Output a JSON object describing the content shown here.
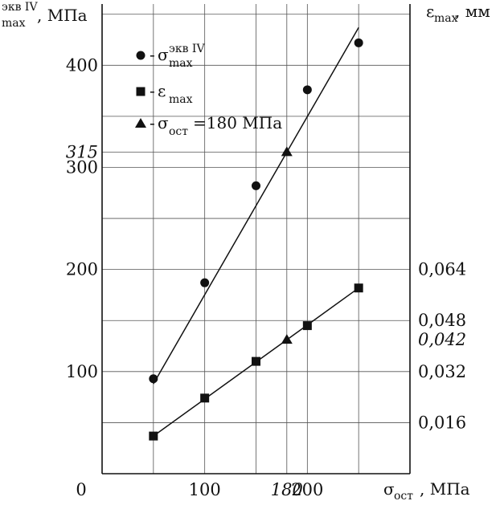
{
  "chart_data": {
    "type": "scatter",
    "x_axis": {
      "title_symbol": "σ",
      "title_subscript": "ост",
      "title_unit": ", МПа",
      "range": [
        0,
        300
      ],
      "ticks": [
        {
          "value": 0,
          "label": "0",
          "italic": false
        },
        {
          "value": 100,
          "label": "100",
          "italic": false
        },
        {
          "value": 180,
          "label": "180",
          "italic": true
        },
        {
          "value": 200,
          "label": "200",
          "italic": false
        }
      ],
      "gridlines": [
        0,
        50,
        100,
        150,
        180,
        200,
        250
      ]
    },
    "y_left_axis": {
      "title_superscript": "экв IV",
      "title_subscript": "max",
      "title_unit": ", МПа",
      "range": [
        0,
        460
      ],
      "ticks": [
        {
          "value": 100,
          "label": "100",
          "italic": false
        },
        {
          "value": 200,
          "label": "200",
          "italic": false
        },
        {
          "value": 300,
          "label": "300",
          "italic": false
        },
        {
          "value": 315,
          "label": "315",
          "italic": true
        },
        {
          "value": 400,
          "label": "400",
          "italic": false
        }
      ],
      "gridlines": [
        50,
        100,
        150,
        200,
        250,
        300,
        315,
        350,
        400,
        450
      ]
    },
    "y_right_axis": {
      "title_symbol": "ε",
      "title_subscript": "max",
      "title_unit": ", мм",
      "range": [
        0,
        0.1472
      ],
      "ticks": [
        {
          "value": 0.016,
          "label": "0,016",
          "italic": false
        },
        {
          "value": 0.032,
          "label": "0,032",
          "italic": false
        },
        {
          "value": 0.042,
          "label": "0,042",
          "italic": true
        },
        {
          "value": 0.048,
          "label": "0,048",
          "italic": false
        },
        {
          "value": 0.064,
          "label": "0,064",
          "italic": false
        }
      ]
    },
    "grid": true,
    "legend": {
      "placement": "top-left",
      "entries": [
        {
          "marker": "circle",
          "dash": "-",
          "symbol": "σ",
          "superscript": "экв IV",
          "subscript": "max",
          "suffix": ""
        },
        {
          "marker": "square",
          "dash": "-",
          "symbol": "ε",
          "superscript": "",
          "subscript": "max",
          "suffix": ""
        },
        {
          "marker": "triangle",
          "dash": "-",
          "symbol": "σ",
          "superscript": "",
          "subscript": "ост",
          "suffix": "=180 МПа"
        }
      ]
    },
    "series": [
      {
        "marker": "circle",
        "axis": "left",
        "points": [
          [
            50,
            93
          ],
          [
            100,
            187
          ],
          [
            150,
            282
          ],
          [
            200,
            376
          ],
          [
            250,
            422
          ]
        ],
        "trend": [
          [
            50,
            88
          ],
          [
            250,
            437
          ]
        ]
      },
      {
        "marker": "square",
        "axis": "right",
        "points": [
          [
            50,
            0.0118
          ],
          [
            100,
            0.0237
          ],
          [
            150,
            0.0352
          ],
          [
            200,
            0.0464
          ],
          [
            250,
            0.0582
          ]
        ],
        "trend": [
          [
            50,
            0.0118
          ],
          [
            250,
            0.0582
          ]
        ]
      },
      {
        "marker": "triangle",
        "axis": "left",
        "points": [
          [
            180,
            315
          ]
        ]
      },
      {
        "marker": "triangle",
        "axis": "right",
        "points": [
          [
            180,
            0.042
          ]
        ]
      }
    ]
  }
}
